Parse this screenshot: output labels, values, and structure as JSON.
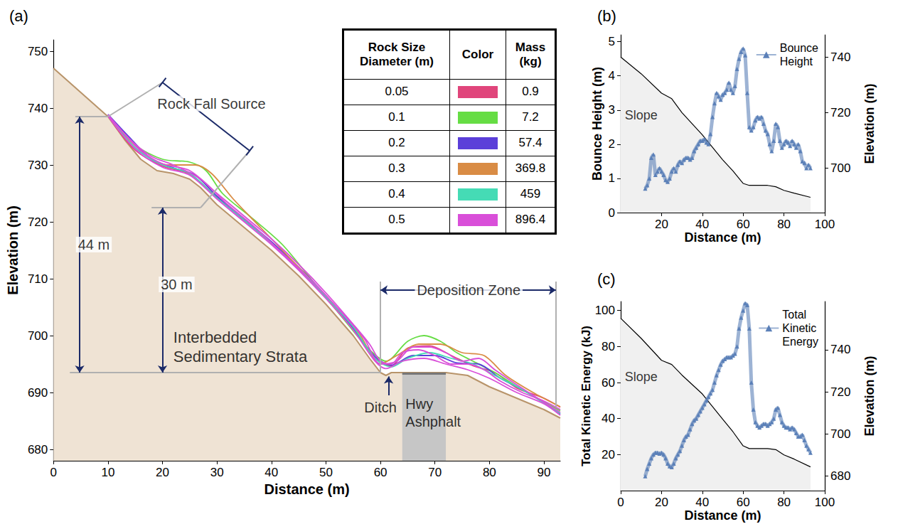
{
  "chart_data": [
    {
      "type": "line",
      "label": "(a)",
      "x_label": "Distance (m)",
      "y_label": "Elevation (m)",
      "xlim": [
        0,
        93
      ],
      "xticks": [
        0,
        10,
        20,
        30,
        40,
        50,
        60,
        70,
        80,
        90
      ],
      "ylim": [
        678,
        752
      ],
      "yticks": [
        680,
        690,
        700,
        710,
        720,
        730,
        740,
        750
      ],
      "grid": false,
      "slope": {
        "x": [
          0,
          10,
          13,
          16,
          19,
          22,
          25,
          27,
          30,
          35,
          40,
          45,
          50,
          55,
          58,
          60,
          61,
          62,
          64,
          72,
          76,
          80,
          85,
          90,
          93
        ],
        "y": [
          747,
          738.5,
          734.5,
          731,
          729,
          728.5,
          727.5,
          726,
          723,
          719,
          715,
          710.5,
          705.5,
          700,
          696,
          693.5,
          693,
          693.5,
          693.5,
          693.5,
          693,
          691,
          689,
          687,
          685.5
        ]
      },
      "size_table": {
        "columns": [
          "Rock Size Diameter (m)",
          "Color",
          "Mass (kg)"
        ],
        "rows": [
          {
            "diameter": 0.05,
            "color": "#e0457b",
            "mass": 0.9
          },
          {
            "diameter": 0.1,
            "color": "#66dd44",
            "mass": 7.2
          },
          {
            "diameter": 0.2,
            "color": "#5b3fd9",
            "mass": 57.4
          },
          {
            "diameter": 0.3,
            "color": "#d98c45",
            "mass": 369.8
          },
          {
            "diameter": 0.4,
            "color": "#45dbb5",
            "mass": 459
          },
          {
            "diameter": 0.5,
            "color": "#d94fd9",
            "mass": 896.4
          }
        ]
      },
      "series": [
        {
          "diameter": 0.05,
          "x": [
            10,
            15,
            20,
            25,
            30,
            35,
            40,
            45,
            50,
            55,
            59,
            62,
            65,
            69,
            73,
            77,
            81,
            85,
            90,
            93
          ],
          "values": [
            738.6,
            732.6,
            729.8,
            728.4,
            724.3,
            720.2,
            716.3,
            711.7,
            706.6,
            701.2,
            696,
            694.7,
            697.8,
            698.2,
            696.5,
            694.7,
            693.5,
            690.8,
            689,
            687.4
          ]
        },
        {
          "diameter": 0.1,
          "x": [
            10,
            15,
            20,
            25,
            28,
            31,
            36,
            42,
            48,
            54,
            58,
            61,
            65,
            68,
            71,
            74,
            77,
            81,
            86,
            93
          ],
          "values": [
            738.7,
            733.5,
            731,
            730.5,
            729,
            725,
            721,
            716,
            709,
            702,
            697.5,
            695.5,
            699,
            700,
            699,
            697,
            695.5,
            693.5,
            690.5,
            686.8
          ]
        },
        {
          "diameter": 0.2,
          "x": [
            10,
            14,
            18,
            22,
            26,
            30,
            35,
            40,
            45,
            50,
            55,
            59,
            62,
            66,
            70,
            74,
            78,
            82,
            87,
            93
          ],
          "values": [
            738.9,
            734.8,
            731,
            729.5,
            728.2,
            724.5,
            720.5,
            716.5,
            712,
            707,
            701.3,
            696.3,
            694.8,
            696.5,
            696.5,
            695.2,
            695,
            692.5,
            690,
            686.2
          ]
        },
        {
          "diameter": 0.3,
          "x": [
            10,
            16,
            21,
            26,
            29,
            33,
            38,
            44,
            50,
            56,
            60,
            63,
            67,
            71,
            75,
            79,
            83,
            88,
            93
          ],
          "values": [
            738.6,
            732.5,
            730,
            730,
            728.5,
            724,
            719,
            713,
            707,
            700.5,
            695,
            696.5,
            698.5,
            698.5,
            697,
            696.5,
            693,
            690,
            687.5
          ]
        },
        {
          "diameter": 0.4,
          "x": [
            10,
            15,
            20,
            25,
            30,
            35,
            40,
            45,
            50,
            55,
            59,
            62,
            65,
            69,
            73,
            77,
            81,
            86,
            93
          ],
          "values": [
            738.7,
            733,
            730,
            728.5,
            724.2,
            720.3,
            716.2,
            711.8,
            706.8,
            701.5,
            696,
            694.5,
            696,
            697,
            696,
            695,
            693,
            690.5,
            686.3
          ]
        },
        {
          "diameter": 0.5,
          "x": [
            10,
            15,
            20,
            25,
            30,
            35,
            40,
            45,
            50,
            55,
            59,
            61,
            64,
            68,
            72,
            76,
            80,
            85,
            90,
            93
          ],
          "values": [
            738.6,
            732.8,
            729.6,
            728.2,
            724,
            720,
            716,
            711.5,
            706.5,
            701,
            695.5,
            694.2,
            695.5,
            696,
            695,
            694,
            692.5,
            690,
            688,
            686
          ]
        },
        {
          "diameter": 0.5,
          "x": [
            10,
            14,
            18,
            22,
            27,
            32,
            37,
            42,
            47,
            52,
            57,
            60,
            63,
            66,
            69,
            72,
            75,
            78,
            81,
            84,
            88,
            93
          ],
          "values": [
            738.8,
            734.5,
            731.5,
            730,
            727.5,
            723,
            719,
            714.5,
            710,
            705,
            699.5,
            695,
            695.5,
            698,
            698,
            697,
            695.5,
            696,
            694,
            692,
            689.5,
            686.5
          ]
        },
        {
          "diameter": 0.5,
          "x": [
            10,
            13,
            16,
            20,
            25,
            30,
            35,
            40,
            45,
            50,
            55,
            58,
            60,
            62,
            64,
            67,
            70,
            73,
            76,
            79,
            82,
            86,
            90,
            93
          ],
          "values": [
            738.8,
            735.5,
            732.5,
            730.2,
            729,
            725,
            721,
            717,
            712.5,
            707.5,
            702,
            698.5,
            695.5,
            695,
            697,
            697.5,
            696.5,
            695,
            695,
            694,
            692,
            690,
            688.5,
            687
          ]
        }
      ],
      "annotations": {
        "source": "Rock Fall Source",
        "drop_total": "44 m",
        "drop_lower": "30 m",
        "strata": "Interbedded Sedimentary Strata",
        "ditch": "Ditch",
        "highway": "Hwy Ashphalt",
        "deposition": "Deposition Zone"
      }
    },
    {
      "type": "line",
      "label": "(b)",
      "x_label": "Distance (m)",
      "y_label": "Bounce Height (m)",
      "y2_label": "Elevation (m)",
      "xlim": [
        0,
        100
      ],
      "xticks": [
        20,
        40,
        60,
        80,
        100
      ],
      "ylim": [
        0,
        5.2
      ],
      "yticks": [
        0,
        1,
        2,
        3,
        4,
        5
      ],
      "y2lim": [
        684,
        748
      ],
      "y2ticks": [
        700,
        720,
        740
      ],
      "grid": false,
      "legend": "upper right",
      "series": [
        {
          "name": "Bounce Height",
          "color": "#5b80b8",
          "marker": "triangle",
          "x": [
            12,
            13,
            14,
            15,
            16,
            17,
            18,
            19,
            20,
            21,
            22,
            23,
            24,
            25,
            26,
            27,
            28,
            29,
            30,
            31,
            32,
            33,
            34,
            35,
            36,
            37,
            38,
            39,
            40,
            41,
            42,
            43,
            44,
            45,
            46,
            47,
            48,
            49,
            50,
            51,
            52,
            53,
            54,
            55,
            56,
            57,
            58,
            59,
            60,
            61,
            62,
            63,
            64,
            65,
            66,
            67,
            68,
            69,
            70,
            71,
            72,
            73,
            74,
            75,
            76,
            77,
            78,
            79,
            80,
            81,
            82,
            83,
            84,
            85,
            86,
            87,
            88,
            89,
            90,
            91,
            92,
            93
          ],
          "values": [
            0.7,
            0.8,
            1.0,
            1.6,
            1.7,
            1.1,
            1.2,
            1.3,
            1.2,
            1.1,
            0.95,
            0.9,
            1.0,
            1.2,
            1.3,
            1.2,
            1.4,
            1.5,
            1.45,
            1.55,
            1.6,
            1.6,
            1.55,
            1.6,
            1.8,
            1.9,
            2.0,
            2.1,
            2.1,
            2.15,
            2.05,
            2.0,
            2.3,
            2.8,
            3.2,
            3.5,
            3.4,
            3.3,
            3.45,
            3.5,
            3.6,
            3.8,
            3.6,
            3.5,
            3.7,
            4.2,
            4.5,
            4.7,
            4.8,
            4.6,
            3.5,
            2.5,
            2.4,
            2.5,
            2.7,
            2.8,
            2.75,
            2.8,
            2.6,
            2.4,
            2.3,
            2.0,
            1.8,
            2.1,
            2.6,
            2.5,
            2.1,
            1.9,
            2.0,
            2.1,
            2.05,
            1.95,
            2.1,
            2.0,
            1.9,
            2.0,
            1.8,
            1.5,
            1.45,
            1.3,
            1.4,
            1.3
          ]
        },
        {
          "name": "Slope",
          "type": "area",
          "axis": "y2",
          "color": "#000000",
          "x": [
            0,
            10,
            20,
            25,
            30,
            40,
            50,
            55,
            60,
            63,
            72,
            76,
            80,
            85,
            93
          ],
          "values": [
            740,
            734,
            727,
            725,
            720,
            712,
            703,
            699,
            694.5,
            693.8,
            693.8,
            693.3,
            692,
            691,
            689.5
          ]
        }
      ]
    },
    {
      "type": "line",
      "label": "(c)",
      "x_label": "Distance (m)",
      "y_label": "Total Kinetic Energy (kJ)",
      "y2_label": "Elevation (m)",
      "xlim": [
        0,
        100
      ],
      "xticks": [
        0,
        20,
        40,
        60,
        80,
        100
      ],
      "ylim": [
        0,
        105
      ],
      "yticks": [
        20,
        40,
        60,
        80,
        100
      ],
      "y2lim": [
        673,
        763
      ],
      "y2ticks": [
        680,
        700,
        720,
        740
      ],
      "grid": false,
      "legend": "upper right",
      "series": [
        {
          "name": "Total Kinetic Energy",
          "color": "#5b80b8",
          "marker": "triangle",
          "x": [
            12,
            13,
            14,
            15,
            16,
            17,
            18,
            19,
            20,
            21,
            22,
            23,
            24,
            25,
            26,
            27,
            28,
            29,
            30,
            31,
            32,
            33,
            34,
            35,
            36,
            37,
            38,
            39,
            40,
            41,
            42,
            43,
            44,
            45,
            46,
            47,
            48,
            49,
            50,
            51,
            52,
            53,
            54,
            55,
            56,
            57,
            58,
            59,
            60,
            61,
            62,
            63,
            64,
            65,
            66,
            67,
            68,
            69,
            70,
            71,
            72,
            73,
            74,
            75,
            76,
            77,
            78,
            79,
            80,
            81,
            82,
            83,
            84,
            85,
            86,
            87,
            88,
            89,
            90,
            91,
            92,
            93
          ],
          "values": [
            8,
            12,
            15,
            18,
            20,
            21,
            21,
            20.5,
            21,
            20,
            18,
            15,
            13.5,
            13,
            15,
            18,
            20,
            22,
            25,
            28,
            30,
            31,
            34,
            37,
            39,
            40,
            42,
            44,
            46,
            48,
            50,
            52,
            54,
            56,
            60,
            64,
            67,
            70,
            72,
            73,
            74,
            74,
            74,
            75,
            76,
            80,
            90,
            96,
            100,
            104,
            103,
            90,
            60,
            45,
            38,
            36,
            35,
            36,
            37,
            37,
            36,
            37,
            38,
            40,
            45,
            46,
            42,
            38,
            36,
            35,
            35,
            34,
            35,
            34,
            32,
            30,
            30,
            31,
            28,
            25,
            23,
            21
          ]
        },
        {
          "name": "Slope",
          "type": "area",
          "axis": "y2",
          "color": "#000000",
          "x": [
            0,
            10,
            20,
            25,
            30,
            40,
            50,
            55,
            60,
            63,
            72,
            76,
            80,
            85,
            93
          ],
          "values": [
            755,
            745.5,
            735,
            733,
            728,
            719,
            707,
            701,
            694.3,
            693,
            693,
            692.5,
            690,
            688,
            684.3
          ]
        }
      ]
    }
  ]
}
